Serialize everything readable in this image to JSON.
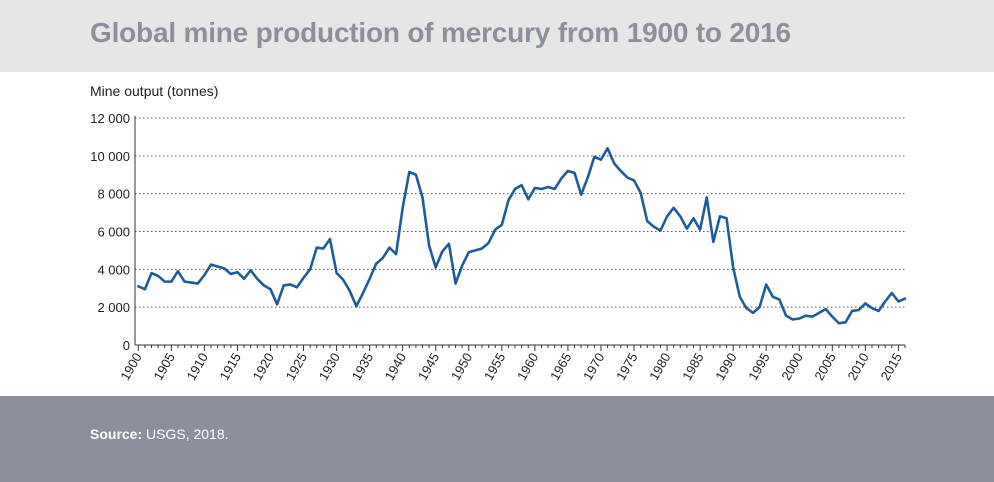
{
  "title": "Global mine production of mercury from 1900 to 2016",
  "source": {
    "label": "Source:",
    "text": "USGS, 2018."
  },
  "chart_data": {
    "type": "line",
    "title": "Global mine production of mercury from 1900 to 2016",
    "ylabel": "Mine output (tonnes)",
    "xlabel": "",
    "ylim": [
      0,
      12000
    ],
    "xlim": [
      1899.5,
      2016
    ],
    "yticks": [
      {
        "value": 0,
        "label": "0"
      },
      {
        "value": 2000,
        "label": "2 000"
      },
      {
        "value": 4000,
        "label": "4 000"
      },
      {
        "value": 6000,
        "label": "6 000"
      },
      {
        "value": 8000,
        "label": "8 000"
      },
      {
        "value": 10000,
        "label": "10 000"
      },
      {
        "value": 12000,
        "label": "12 000"
      }
    ],
    "xticks": [
      1900,
      1905,
      1910,
      1915,
      1920,
      1925,
      1930,
      1935,
      1940,
      1945,
      1950,
      1955,
      1960,
      1965,
      1970,
      1975,
      1980,
      1985,
      1990,
      1995,
      2000,
      2005,
      2010,
      2015
    ],
    "grid": "horizontal dotted",
    "color": "#1f5c99",
    "series": [
      {
        "x": [
          1900,
          1901,
          1902,
          1903,
          1904,
          1905,
          1906,
          1907,
          1908,
          1909,
          1910,
          1911,
          1912,
          1913,
          1914,
          1915,
          1916,
          1917,
          1918,
          1919,
          1920,
          1921,
          1922,
          1923,
          1924,
          1925,
          1926,
          1927,
          1928,
          1929,
          1930,
          1931,
          1932,
          1933,
          1934,
          1935,
          1936,
          1937,
          1938,
          1939,
          1940,
          1941,
          1942,
          1943,
          1944,
          1945,
          1946,
          1947,
          1948,
          1949,
          1950,
          1951,
          1952,
          1953,
          1954,
          1955,
          1956,
          1957,
          1958,
          1959,
          1960,
          1961,
          1962,
          1963,
          1964,
          1965,
          1966,
          1967,
          1968,
          1969,
          1970,
          1971,
          1972,
          1973,
          1974,
          1975,
          1976,
          1977,
          1978,
          1979,
          1980,
          1981,
          1982,
          1983,
          1984,
          1985,
          1986,
          1987,
          1988,
          1989,
          1990,
          1991,
          1992,
          1993,
          1994,
          1995,
          1996,
          1997,
          1998,
          1999,
          2000,
          2001,
          2002,
          2003,
          2004,
          2005,
          2006,
          2007,
          2008,
          2009,
          2010,
          2011,
          2012,
          2013,
          2014,
          2015,
          2016
        ],
        "values": [
          3100,
          2950,
          3800,
          3650,
          3350,
          3350,
          3900,
          3350,
          3300,
          3250,
          3700,
          4250,
          4150,
          4050,
          3750,
          3850,
          3500,
          3950,
          3500,
          3150,
          2950,
          2150,
          3150,
          3200,
          3050,
          3550,
          4000,
          5150,
          5100,
          5600,
          3800,
          3450,
          2850,
          2050,
          2750,
          3500,
          4300,
          4600,
          5150,
          4800,
          7250,
          9150,
          9000,
          7800,
          5250,
          4100,
          4950,
          5350,
          3250,
          4200,
          4900,
          5000,
          5100,
          5400,
          6100,
          6350,
          7650,
          8250,
          8450,
          7700,
          8300,
          8250,
          8350,
          8250,
          8800,
          9200,
          9100,
          7950,
          8850,
          9950,
          9800,
          10400,
          9600,
          9200,
          8850,
          8700,
          8050,
          6550,
          6250,
          6050,
          6800,
          7250,
          6800,
          6150,
          6700,
          6100,
          7800,
          5450,
          6800,
          6700,
          4100,
          2550,
          1950,
          1700,
          2000,
          3200,
          2550,
          2400,
          1550,
          1350,
          1400,
          1550,
          1500,
          1700,
          1900,
          1500,
          1150,
          1200,
          1800,
          1850,
          2200,
          1950,
          1800,
          2300,
          2750,
          2300,
          2450
        ]
      }
    ]
  }
}
